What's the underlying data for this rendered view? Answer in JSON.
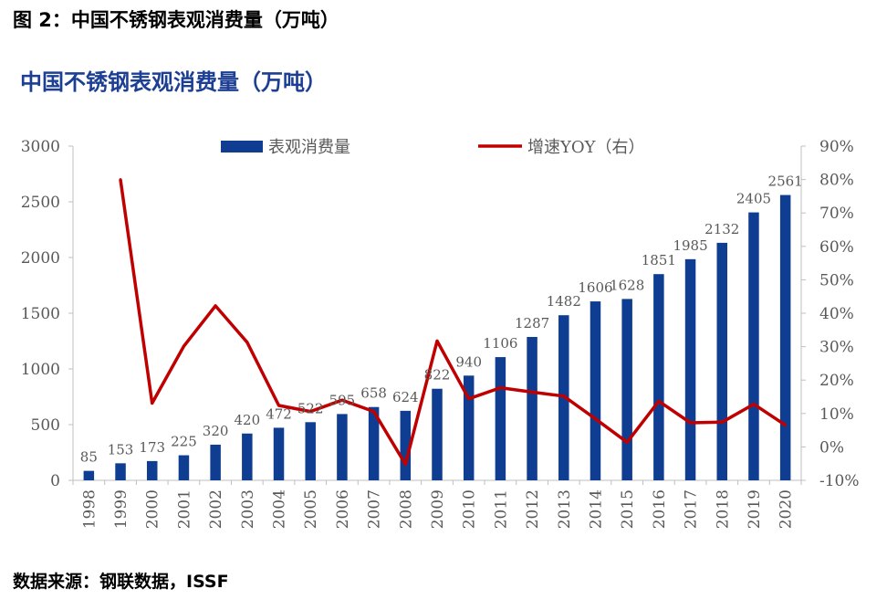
{
  "figure_caption": "图 2：中国不锈钢表观消费量（万吨）",
  "source_note": "数据来源：钢联数据，ISSF",
  "colors": {
    "bar": "#0f3d91",
    "line": "#c00000",
    "title": "#1c3f94",
    "text": "#595959"
  },
  "chart_data": {
    "type": "bar",
    "title": "中国不锈钢表观消费量（万吨）",
    "categories": [
      "1998",
      "1999",
      "2000",
      "2001",
      "2002",
      "2003",
      "2004",
      "2005",
      "2006",
      "2007",
      "2008",
      "2009",
      "2010",
      "2011",
      "2012",
      "2013",
      "2014",
      "2015",
      "2016",
      "2017",
      "2018",
      "2019",
      "2020"
    ],
    "series": [
      {
        "name": "表观消费量",
        "type": "bar",
        "axis": "left",
        "values": [
          85,
          153,
          173,
          225,
          320,
          420,
          472,
          522,
          595,
          658,
          624,
          822,
          940,
          1106,
          1287,
          1482,
          1606,
          1628,
          1851,
          1985,
          2132,
          2405,
          2561
        ]
      },
      {
        "name": "增速YOY（右）",
        "type": "line",
        "axis": "right",
        "values": [
          null,
          80,
          13.1,
          30.1,
          42.2,
          31.3,
          12.4,
          10.6,
          14.0,
          10.6,
          -5.2,
          31.7,
          14.4,
          17.7,
          16.4,
          15.2,
          8.4,
          1.4,
          13.7,
          7.2,
          7.4,
          12.8,
          6.5
        ]
      }
    ],
    "y_left": {
      "min": 0,
      "max": 3000,
      "ticks": [
        "0",
        "500",
        "1000",
        "1500",
        "2000",
        "2500",
        "3000"
      ]
    },
    "y_right": {
      "min": -10,
      "max": 90,
      "ticks": [
        "-10%",
        "0%",
        "10%",
        "20%",
        "30%",
        "40%",
        "50%",
        "60%",
        "70%",
        "80%",
        "90%"
      ]
    },
    "legend_position": "top",
    "grid": false
  }
}
